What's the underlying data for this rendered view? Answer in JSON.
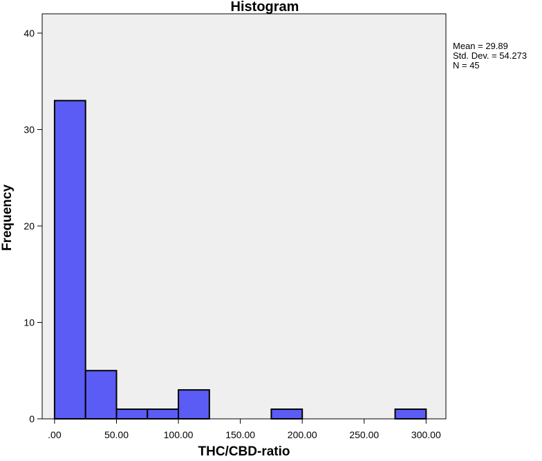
{
  "chart_data": {
    "type": "bar",
    "title": "Histogram",
    "xlabel": "THC/CBD-ratio",
    "ylabel": "Frequency",
    "bin_edges": [
      0,
      25,
      50,
      75,
      100,
      125,
      150,
      175,
      200,
      225,
      250,
      275,
      300
    ],
    "values": [
      33,
      5,
      1,
      1,
      3,
      0,
      0,
      1,
      0,
      0,
      0,
      1
    ],
    "xticks": [
      0,
      50,
      100,
      150,
      200,
      250,
      300
    ],
    "xtick_labels": [
      ".00",
      "50.00",
      "100.00",
      "150.00",
      "200.00",
      "250.00",
      "300.00"
    ],
    "yticks": [
      0,
      10,
      20,
      30,
      40
    ],
    "ytick_labels": [
      "0",
      "10",
      "20",
      "30",
      "40"
    ],
    "xlim": [
      -10,
      316
    ],
    "ylim": [
      0,
      42
    ],
    "grid": false,
    "bar_color": "#5b5cf5",
    "plot_background": "#efefef",
    "stats": [
      "Mean = 29.89",
      "Std. Dev. = 54.273",
      "N = 45"
    ],
    "stats_placement": "top-right, outside plot"
  }
}
